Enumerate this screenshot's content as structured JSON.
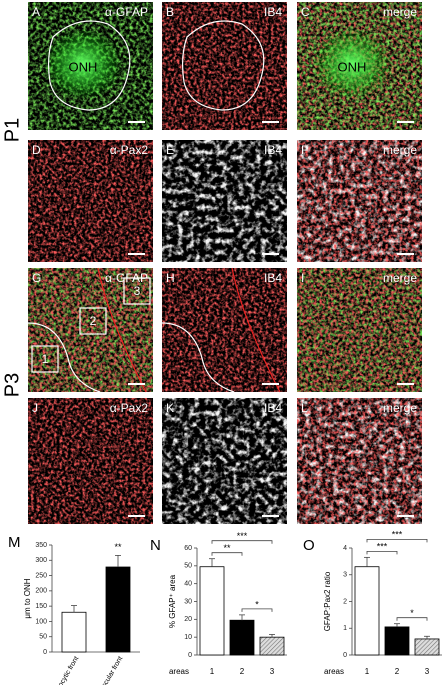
{
  "row_labels": [
    "P1",
    "P3"
  ],
  "panels": [
    {
      "letter": "A",
      "label": "α-GFAP",
      "marks": [
        "ONH"
      ]
    },
    {
      "letter": "B",
      "label": "IB4"
    },
    {
      "letter": "C",
      "label": "merge",
      "marks": [
        "ONH"
      ]
    },
    {
      "letter": "D",
      "label": "α-Pax2"
    },
    {
      "letter": "E",
      "label": "IB4"
    },
    {
      "letter": "F",
      "label": "merge"
    },
    {
      "letter": "G",
      "label": "α-GFAP",
      "marks": [
        "1",
        "2",
        "3"
      ]
    },
    {
      "letter": "H",
      "label": "IB4"
    },
    {
      "letter": "I",
      "label": "merge"
    },
    {
      "letter": "J",
      "label": "α-Pax2"
    },
    {
      "letter": "K",
      "label": "IB4"
    },
    {
      "letter": "L",
      "label": "merge"
    }
  ],
  "chart_data": [
    {
      "type": "bar",
      "panel": "M",
      "ylabel": "μm to ONH",
      "categories": [
        "Astrocytic front",
        "Vascular front"
      ],
      "values": [
        130,
        278
      ],
      "errors": [
        22,
        38
      ],
      "fills": [
        "white",
        "black"
      ],
      "ylim": [
        0,
        350
      ],
      "yticks": [
        0,
        50,
        100,
        150,
        200,
        250,
        300,
        350
      ],
      "annotations": [
        {
          "text": "**",
          "bars": [
            1
          ]
        }
      ]
    },
    {
      "type": "bar",
      "panel": "N",
      "ylabel": "% GFAP⁺ area",
      "xlabel": "areas",
      "categories": [
        "1",
        "2",
        "3"
      ],
      "values": [
        49.5,
        19.5,
        10
      ],
      "errors": [
        4.5,
        3,
        1.5
      ],
      "fills": [
        "white",
        "black",
        "hatched"
      ],
      "ylim": [
        0,
        60
      ],
      "yticks": [
        0,
        10,
        20,
        30,
        40,
        50,
        60
      ],
      "annotations": [
        {
          "text": "**",
          "bars": [
            0,
            1
          ]
        },
        {
          "text": "***",
          "bars": [
            0,
            2
          ]
        },
        {
          "text": "*",
          "bars": [
            1,
            2
          ]
        }
      ]
    },
    {
      "type": "bar",
      "panel": "O",
      "ylabel": "GFAP:Pax2 ratio",
      "xlabel": "areas",
      "categories": [
        "1",
        "2",
        "3"
      ],
      "values": [
        3.3,
        1.05,
        0.6
      ],
      "errors": [
        0.35,
        0.12,
        0.1
      ],
      "fills": [
        "white",
        "black",
        "hatched"
      ],
      "ylim": [
        0,
        4
      ],
      "yticks": [
        0,
        1,
        2,
        3,
        4
      ],
      "annotations": [
        {
          "text": "***",
          "bars": [
            0,
            1
          ]
        },
        {
          "text": "***",
          "bars": [
            0,
            2
          ]
        },
        {
          "text": "*",
          "bars": [
            1,
            2
          ]
        }
      ]
    }
  ]
}
